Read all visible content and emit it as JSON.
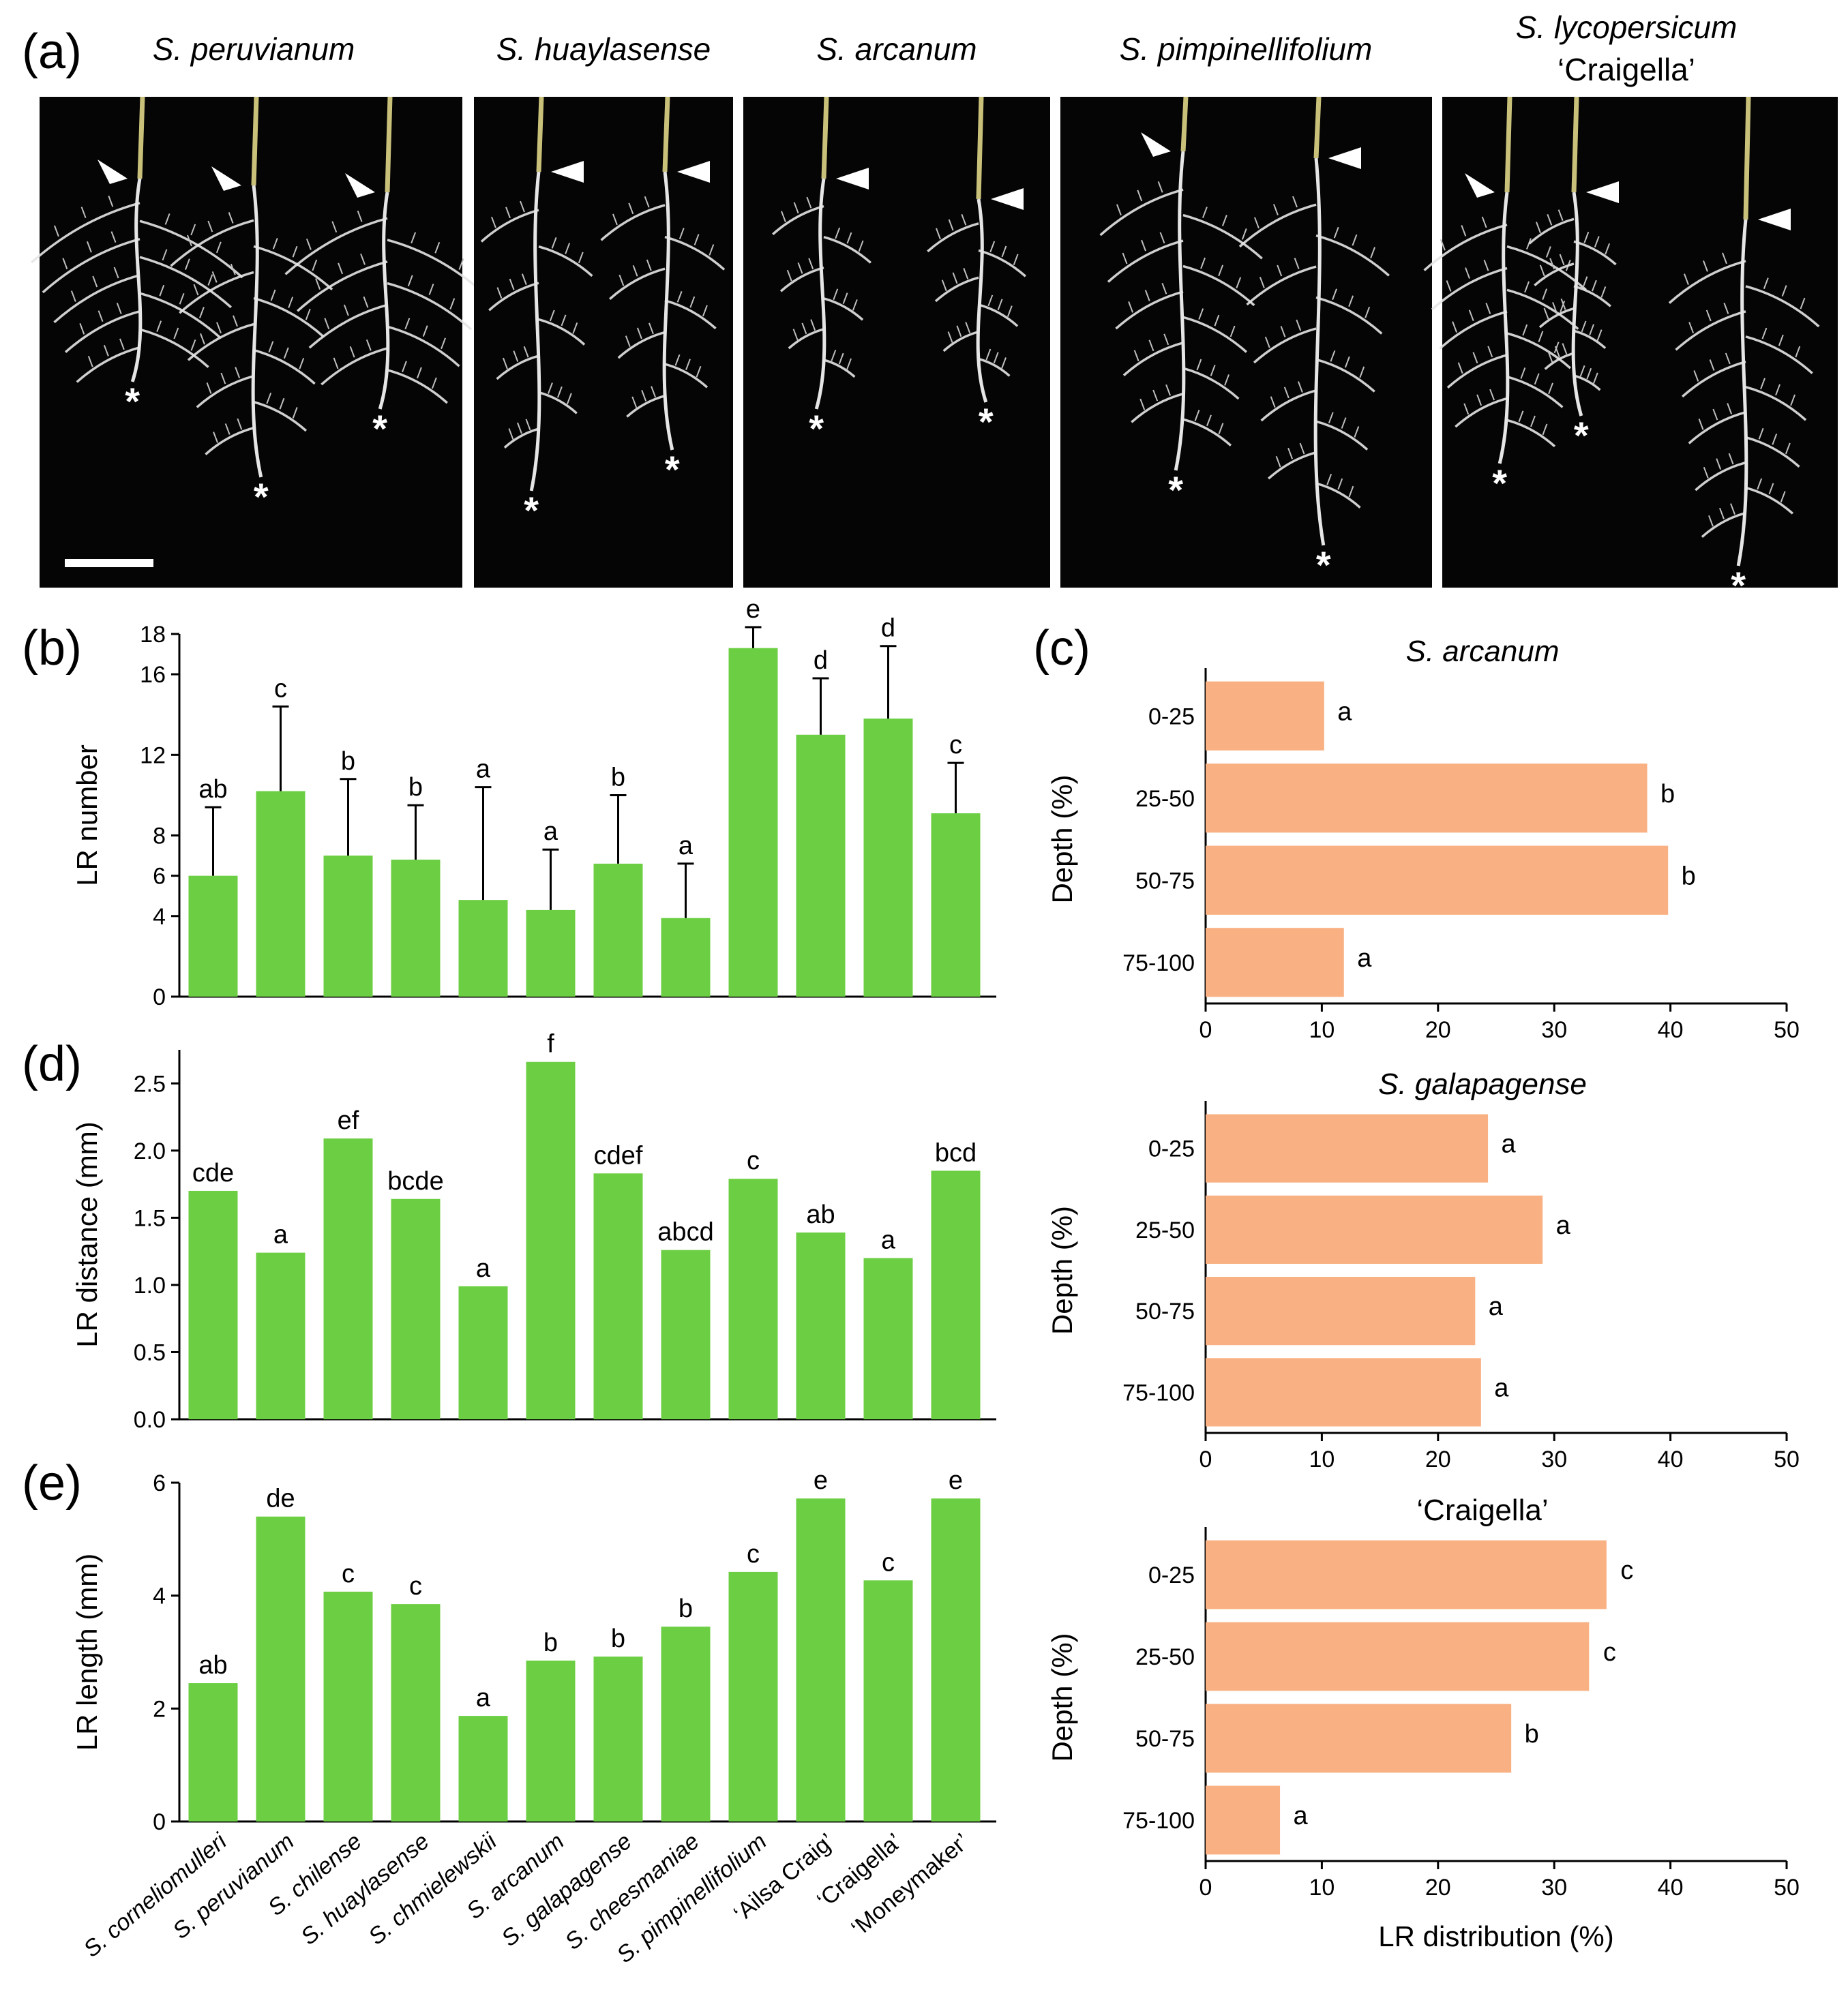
{
  "panel_labels": [
    "(a)",
    "(b)",
    "(c)",
    "(d)",
    "(e)"
  ],
  "panel_a": {
    "photos": [
      {
        "title": "S. peruvianum",
        "italic": true
      },
      {
        "title": "S. huaylasense",
        "italic": true
      },
      {
        "title": "S. arcanum",
        "italic": true
      },
      {
        "title": "S. pimpinellifolium",
        "italic": true
      },
      {
        "title": "S. lycopersicum",
        "subtitle": "‘Craigella’",
        "italic": true
      }
    ],
    "star": "*",
    "colors": {
      "background": "#050505",
      "root": "#e6e6e6",
      "arrow": "#ffffff"
    }
  },
  "bar_color": "#6ccf43",
  "hbar_color": "#f9b183",
  "categories": [
    "S. corneliomulleri",
    "S. peruvianum",
    "S. chilense",
    "S. huaylasense",
    "S. chmielewskii",
    "S. arcanum",
    "S. galapagense",
    "S. cheesmaniae",
    "S. pimpinellifolium",
    "‘Ailsa Craig’",
    "‘Craigella’",
    "‘Moneymaker’"
  ],
  "chart_data": [
    {
      "id": "b",
      "type": "bar",
      "ylabel": "LR number",
      "ylim": [
        0,
        18
      ],
      "yticks": [
        "0",
        "4",
        "6",
        "8",
        "12",
        "16",
        "18"
      ],
      "values": [
        6.0,
        10.2,
        7.0,
        6.8,
        4.8,
        4.3,
        6.6,
        3.9,
        17.3,
        13.0,
        13.8,
        9.1
      ],
      "errors": [
        3.4,
        4.2,
        3.8,
        2.7,
        5.6,
        3.0,
        3.4,
        2.7,
        2.7,
        2.8,
        3.6,
        2.5
      ],
      "letters": [
        "ab",
        "c",
        "b",
        "b",
        "a",
        "a",
        "b",
        "a",
        "e",
        "d",
        "d",
        "c"
      ]
    },
    {
      "id": "d",
      "type": "bar",
      "ylabel": "LR distance (mm)",
      "ylim": [
        0,
        2.75
      ],
      "yticks": [
        "0.0",
        "0.5",
        "1.0",
        "1.5",
        "2.0",
        "2.5"
      ],
      "values": [
        1.7,
        1.24,
        2.09,
        1.64,
        0.99,
        2.66,
        1.83,
        1.26,
        1.79,
        1.39,
        1.2,
        1.85
      ],
      "letters": [
        "cde",
        "a",
        "ef",
        "bcde",
        "a",
        "f",
        "cdef",
        "abcd",
        "c",
        "ab",
        "a",
        "bcd"
      ]
    },
    {
      "id": "e",
      "type": "bar",
      "ylabel": "LR length (mm)",
      "ylim": [
        0,
        6
      ],
      "yticks": [
        "0",
        "2",
        "4",
        "6"
      ],
      "values": [
        2.45,
        5.4,
        4.07,
        3.85,
        1.87,
        2.85,
        2.92,
        3.45,
        4.42,
        5.72,
        4.27,
        5.72
      ],
      "letters": [
        "ab",
        "de",
        "c",
        "c",
        "a",
        "b",
        "b",
        "b",
        "c",
        "e",
        "c",
        "e"
      ]
    },
    {
      "id": "c1",
      "type": "bar",
      "orientation": "horizontal",
      "title": "S. arcanum",
      "ylabel": "Depth (%)",
      "categories": [
        "0-25",
        "25-50",
        "50-75",
        "75-100"
      ],
      "values": [
        10.2,
        38.0,
        39.8,
        11.9
      ],
      "letters": [
        "a",
        "b",
        "b",
        "a"
      ],
      "xlim": [
        0,
        50
      ],
      "xticks": [
        "0",
        "10",
        "20",
        "30",
        "40",
        "50"
      ]
    },
    {
      "id": "c2",
      "type": "bar",
      "orientation": "horizontal",
      "title": "S. galapagense",
      "ylabel": "Depth (%)",
      "categories": [
        "0-25",
        "25-50",
        "50-75",
        "75-100"
      ],
      "values": [
        24.3,
        29.0,
        23.2,
        23.7
      ],
      "letters": [
        "a",
        "a",
        "a",
        "a"
      ],
      "xlim": [
        0,
        50
      ],
      "xticks": [
        "0",
        "10",
        "20",
        "30",
        "40",
        "50"
      ]
    },
    {
      "id": "c3",
      "type": "bar",
      "orientation": "horizontal",
      "title": "‘Craigella’",
      "ylabel": "Depth (%)",
      "xlabel": "LR distribution (%)",
      "categories": [
        "0-25",
        "25-50",
        "50-75",
        "75-100"
      ],
      "values": [
        34.5,
        33.0,
        26.3,
        6.4
      ],
      "letters": [
        "c",
        "c",
        "b",
        "a"
      ],
      "xlim": [
        0,
        50
      ],
      "xticks": [
        "0",
        "10",
        "20",
        "30",
        "40",
        "50"
      ]
    }
  ]
}
